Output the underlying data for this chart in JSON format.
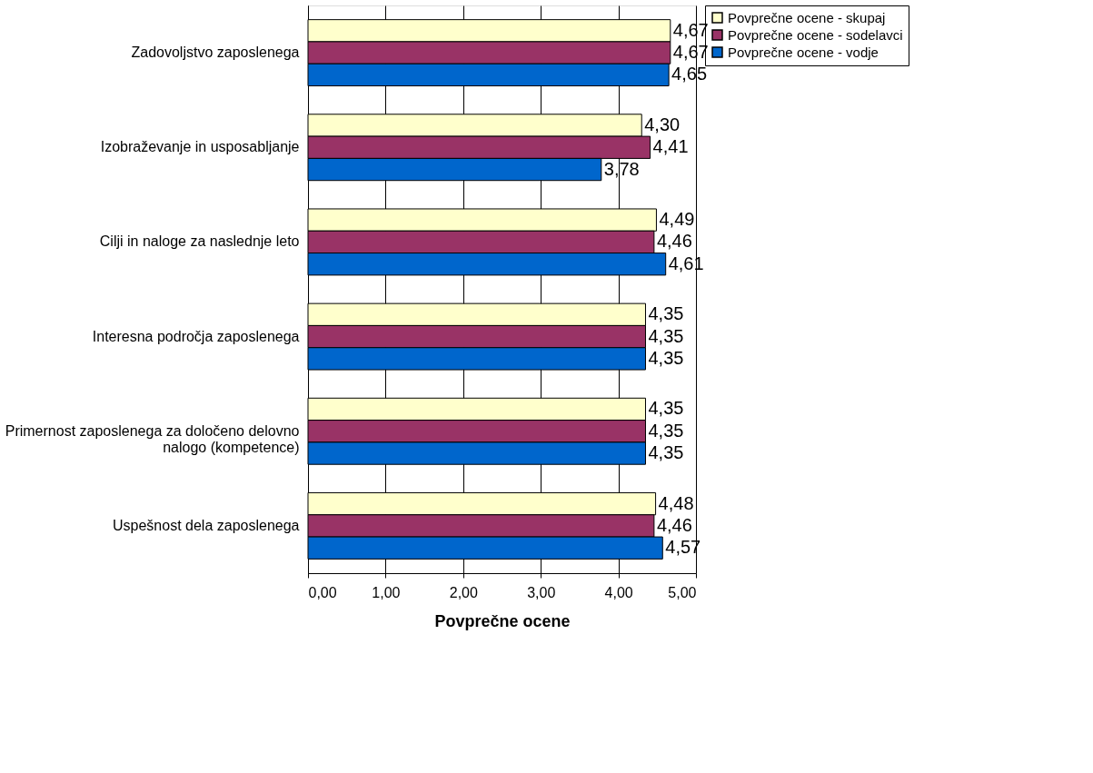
{
  "chart_data": {
    "type": "bar",
    "orientation": "horizontal",
    "xlabel": "Povprečne ocene",
    "categories": [
      "Zadovoljstvo zaposlenega",
      "Izobraževanje in usposabljanje",
      "Cilji in naloge za naslednje leto",
      "Interesna področja zaposlenega",
      "Primernost zaposlenega za določeno delovno nalogo (kompetence)",
      "Uspešnost dela zaposlenega"
    ],
    "series": [
      {
        "name": "Povprečne ocene - skupaj",
        "color": "#ffffcc",
        "values": [
          4.67,
          4.3,
          4.49,
          4.35,
          4.35,
          4.48
        ],
        "value_labels": [
          "4,67",
          "4,30",
          "4,49",
          "4,35",
          "4,35",
          "4,48"
        ]
      },
      {
        "name": "Povprečne ocene - sodelavci",
        "color": "#993366",
        "values": [
          4.67,
          4.41,
          4.46,
          4.35,
          4.35,
          4.46
        ],
        "value_labels": [
          "4,67",
          "4,41",
          "4,46",
          "4,35",
          "4,35",
          "4,46"
        ]
      },
      {
        "name": "Povprečne ocene - vodje",
        "color": "#0066cc",
        "values": [
          4.65,
          3.78,
          4.61,
          4.35,
          4.35,
          4.57
        ],
        "value_labels": [
          "4,65",
          "3,78",
          "4,61",
          "4,35",
          "4,35",
          "4,57"
        ]
      }
    ],
    "xlim": [
      0,
      5
    ],
    "xticks": [
      {
        "value": 0,
        "label": "0,00"
      },
      {
        "value": 1,
        "label": "1,00"
      },
      {
        "value": 2,
        "label": "2,00"
      },
      {
        "value": 3,
        "label": "3,00"
      },
      {
        "value": 4,
        "label": "4,00"
      },
      {
        "value": 5,
        "label": "5,00"
      }
    ],
    "grid": "x",
    "legend": "right"
  }
}
